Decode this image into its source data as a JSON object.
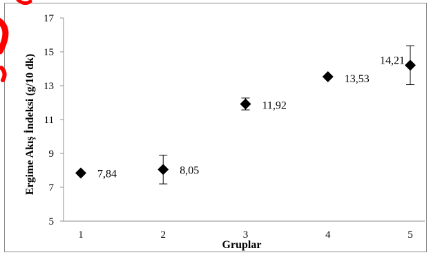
{
  "chart_data": {
    "type": "scatter",
    "title": "",
    "xlabel": "Gruplar",
    "ylabel": "Ergime Akış İndeksi (g/10 dk)",
    "x": [
      1,
      2,
      3,
      4,
      5
    ],
    "y": [
      7.84,
      8.05,
      11.92,
      13.53,
      14.21
    ],
    "data_labels": [
      "7,84",
      "8,05",
      "11,92",
      "13,53",
      "14,21"
    ],
    "error": [
      0,
      0.85,
      0.35,
      0,
      1.15
    ],
    "xticks": [
      1,
      2,
      3,
      4,
      5
    ],
    "yticks": [
      5,
      7,
      9,
      11,
      13,
      15,
      17
    ],
    "xlim": [
      1,
      5
    ],
    "ylim": [
      5,
      17
    ],
    "grid": false,
    "legend": "none",
    "marker": "diamond",
    "marker_color": "#000000",
    "accent_color": "#ff0000"
  }
}
